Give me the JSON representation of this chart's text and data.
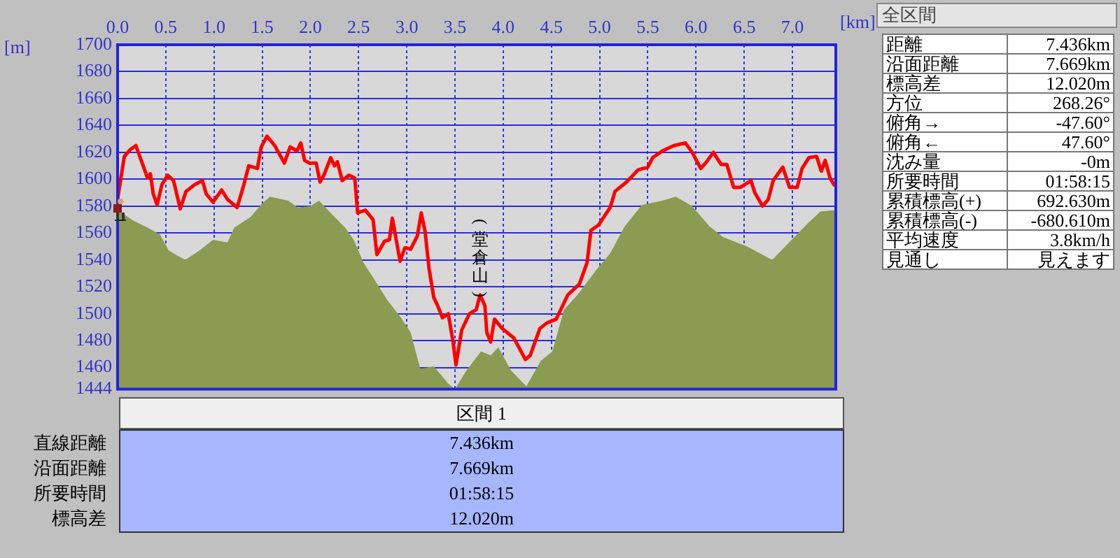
{
  "chart_data": [
    {
      "type": "line",
      "xlabel": "[km]",
      "ylabel": "[m]",
      "annotations": [
        "(堂倉山)"
      ],
      "xlim": [
        0,
        7.45
      ],
      "xticks": [
        {
          "value": 0,
          "label": "0.0"
        },
        0.5,
        {
          "value": 1,
          "label": "1.0"
        },
        1.5,
        {
          "value": 2,
          "label": "2.0"
        },
        2.5,
        {
          "value": 3,
          "label": "3.0"
        },
        3.5,
        {
          "value": 4,
          "label": "4.0"
        },
        4.5,
        {
          "value": 5,
          "label": "5.0"
        },
        5.5,
        {
          "value": 6,
          "label": "6.0"
        },
        6.5,
        {
          "value": 7,
          "label": "7.0"
        }
      ],
      "ylim": [
        1444,
        1700
      ],
      "yticks": [
        1444,
        1460,
        1480,
        1500,
        1520,
        1540,
        1560,
        1580,
        1600,
        1620,
        1640,
        1660,
        1680,
        1700
      ],
      "grid": true,
      "legend": false,
      "marker": "none",
      "series": [
        {
          "type": "area",
          "color": "#8b9b52",
          "x": [
            0,
            0.17,
            0.31,
            0.44,
            0.53,
            0.7,
            0.85,
            0.99,
            1.14,
            1.21,
            1.38,
            1.5,
            1.58,
            1.77,
            1.87,
            2,
            2.09,
            2.21,
            2.36,
            2.45,
            2.55,
            2.65,
            2.8,
            2.94,
            3.04,
            3.14,
            3.28,
            3.43,
            3.5,
            3.62,
            3.77,
            3.87,
            3.95,
            4.08,
            4.24,
            4.39,
            4.51,
            4.63,
            4.77,
            4.97,
            5.11,
            5.26,
            5.44,
            5.65,
            5.79,
            5.96,
            6.14,
            6.28,
            6.53,
            6.79,
            7.02,
            7.17,
            7.29,
            7.44
          ],
          "values": [
            1577,
            1569,
            1564,
            1559,
            1547,
            1540,
            1547,
            1555,
            1553,
            1564,
            1572,
            1582,
            1587,
            1584,
            1579,
            1580,
            1584,
            1575,
            1564,
            1555,
            1538,
            1527,
            1510,
            1497,
            1486,
            1459,
            1461,
            1448,
            1444,
            1458,
            1472,
            1469,
            1475,
            1458,
            1446,
            1465,
            1472,
            1503,
            1514,
            1533,
            1545,
            1565,
            1581,
            1584,
            1587,
            1580,
            1565,
            1557,
            1550,
            1540,
            1557,
            1568,
            1576,
            1577
          ]
        },
        {
          "type": "line",
          "color": "#ff0000",
          "x": [
            0,
            0.03,
            0.07,
            0.13,
            0.19,
            0.24,
            0.31,
            0.34,
            0.37,
            0.41,
            0.46,
            0.52,
            0.58,
            0.65,
            0.71,
            0.8,
            0.88,
            0.92,
            0.99,
            1.08,
            1.14,
            1.24,
            1.31,
            1.36,
            1.45,
            1.49,
            1.55,
            1.63,
            1.73,
            1.79,
            1.86,
            1.9,
            1.94,
            1.99,
            2.06,
            2.1,
            2.14,
            2.21,
            2.25,
            2.28,
            2.33,
            2.4,
            2.46,
            2.49,
            2.57,
            2.65,
            2.69,
            2.77,
            2.82,
            2.85,
            2.93,
            2.98,
            3.04,
            3.11,
            3.15,
            3.19,
            3.23,
            3.28,
            3.32,
            3.37,
            3.43,
            3.48,
            3.51,
            3.57,
            3.65,
            3.72,
            3.76,
            3.81,
            3.83,
            3.87,
            3.91,
            3.99,
            4.11,
            4.23,
            4.28,
            4.38,
            4.45,
            4.55,
            4.67,
            4.79,
            4.87,
            4.91,
            4.99,
            5.11,
            5.16,
            5.28,
            5.4,
            5.5,
            5.55,
            5.65,
            5.77,
            5.89,
            5.96,
            6.05,
            6.11,
            6.18,
            6.26,
            6.32,
            6.39,
            6.46,
            6.57,
            6.61,
            6.69,
            6.75,
            6.8,
            6.9,
            6.97,
            7.05,
            7.1,
            7.17,
            7.25,
            7.3,
            7.34,
            7.39,
            7.44
          ],
          "values": [
            1585,
            1599,
            1617,
            1622,
            1625,
            1615,
            1601,
            1604,
            1589,
            1581,
            1596,
            1603,
            1599,
            1578,
            1591,
            1596,
            1599,
            1589,
            1583,
            1592,
            1585,
            1579,
            1596,
            1610,
            1608,
            1624,
            1632,
            1625,
            1612,
            1624,
            1621,
            1627,
            1614,
            1612,
            1612,
            1598,
            1603,
            1616,
            1610,
            1613,
            1599,
            1603,
            1601,
            1575,
            1577,
            1570,
            1544,
            1554,
            1555,
            1571,
            1539,
            1549,
            1548,
            1558,
            1575,
            1561,
            1534,
            1512,
            1506,
            1497,
            1500,
            1479,
            1462,
            1488,
            1500,
            1503,
            1514,
            1506,
            1486,
            1479,
            1496,
            1489,
            1482,
            1466,
            1469,
            1489,
            1493,
            1496,
            1514,
            1522,
            1538,
            1562,
            1566,
            1579,
            1591,
            1598,
            1607,
            1609,
            1616,
            1621,
            1625,
            1627,
            1620,
            1608,
            1613,
            1620,
            1611,
            1611,
            1594,
            1594,
            1599,
            1590,
            1580,
            1585,
            1599,
            1609,
            1594,
            1594,
            1608,
            1616,
            1617,
            1606,
            1614,
            1601,
            1595
          ]
        }
      ]
    },
    {
      "type": "other",
      "title": "全区間",
      "annotations": [
        "距離",
        "7.436km",
        "沿面距離",
        "7.669km",
        "標高差",
        "12.020m",
        "方位",
        "268.26°",
        "俯角→",
        "-47.60°",
        "俯角←",
        "47.60°",
        "沈み量",
        "-0m",
        "所要時間",
        "01:58:15",
        "累積標高(+)",
        "692.630m",
        "累積標高(-)",
        "-680.610m",
        "平均速度",
        "3.8km/h",
        "見通し",
        "見えます"
      ]
    },
    {
      "type": "other",
      "title": "区間 1",
      "annotations": [
        "直線距離",
        "7.436km",
        "沿面距離",
        "7.669km",
        "所要時間",
        "01:58:15",
        "標高差",
        "12.020m"
      ]
    }
  ]
}
